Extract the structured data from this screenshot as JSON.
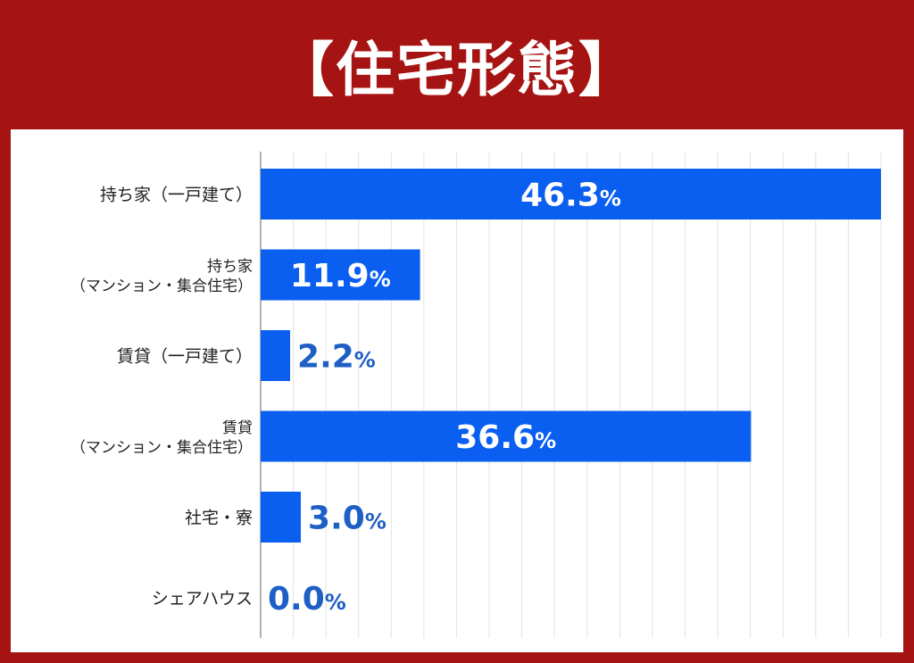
{
  "chart_data": {
    "type": "bar",
    "orientation": "horizontal",
    "title": "【住宅形態】",
    "categories": [
      [
        "持ち家（一戸建て）"
      ],
      [
        "持ち家",
        "（マンション・集合住宅）"
      ],
      [
        "賃貸（一戸建て）"
      ],
      [
        "賃貸",
        "（マンション・集合住宅）"
      ],
      [
        "社宅・寮"
      ],
      [
        "シェアハウス"
      ]
    ],
    "values": [
      46.3,
      11.9,
      2.2,
      36.6,
      3.0,
      0.0
    ],
    "labels": [
      "46.3",
      "11.9",
      "2.2",
      "36.6",
      "3.0",
      "0.0"
    ],
    "unit": "%",
    "xlim": [
      0,
      46.3
    ],
    "grid": true,
    "bar_color": "#0a5ff0",
    "label_color_inside": "#ffffff",
    "label_color_outside": "#1d5fc5"
  },
  "colors": {
    "background": "#a51412",
    "panel": "#ffffff",
    "grid": "#e3e3e3",
    "axis": "#999999"
  }
}
